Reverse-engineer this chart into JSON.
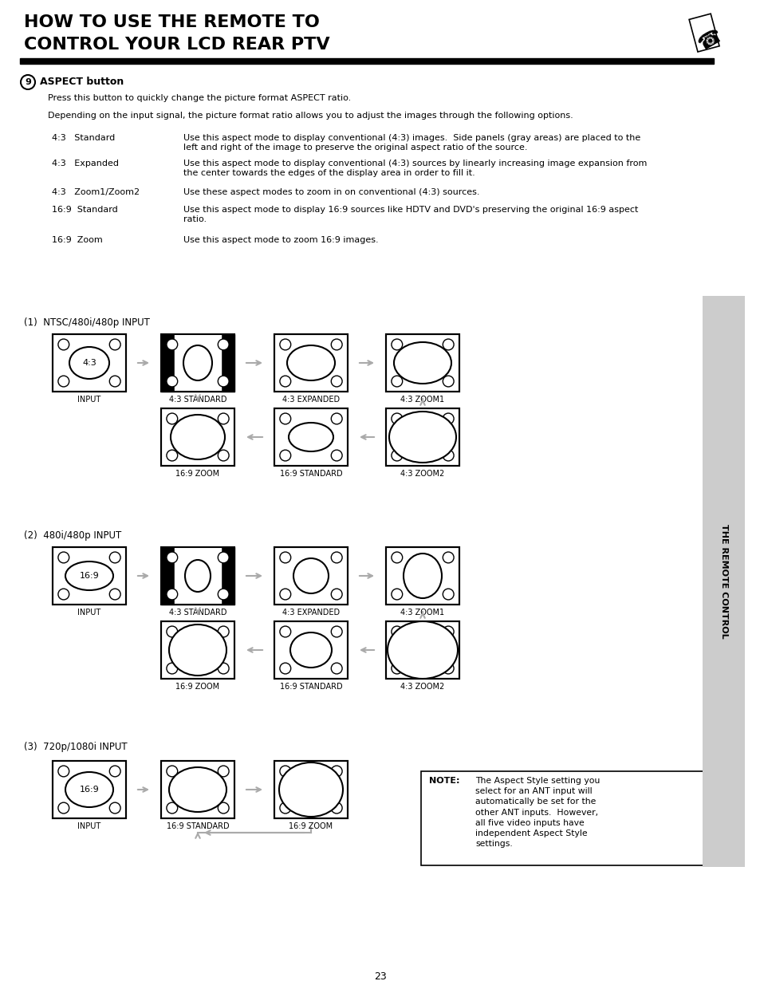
{
  "title_line1": "HOW TO USE THE REMOTE TO",
  "title_line2": "CONTROL YOUR LCD REAR PTV",
  "bg_color": "#ffffff",
  "sidebar_text": "THE REMOTE CONTROL",
  "page_number": "23",
  "aspect_button_label": "ASPECT button",
  "aspect_button_number": "9",
  "body_text1": "Press this button to quickly change the picture format ASPECT ratio.",
  "body_text2": "Depending on the input signal, the picture format ratio allows you to adjust the images through the following options.",
  "mode_labels": [
    "4:3   Standard",
    "4:3   Expanded",
    "4:3   Zoom1/Zoom2",
    "16:9  Standard",
    "16:9  Zoom"
  ],
  "mode_descs": [
    "Use this aspect mode to display conventional (4:3) images.  Side panels (gray areas) are placed to the\nleft and right of the image to preserve the original aspect ratio of the source.",
    "Use this aspect mode to display conventional (4:3) sources by linearly increasing image expansion from\nthe center towards the edges of the display area in order to fill it.",
    "Use these aspect modes to zoom in on conventional (4:3) sources.",
    "Use this aspect mode to display 16:9 sources like HDTV and DVD's preserving the original 16:9 aspect\nratio.",
    "Use this aspect mode to zoom 16:9 images."
  ],
  "section_labels": [
    "(1)  NTSC/480i/480p INPUT",
    "(2)  480i/480p INPUT",
    "(3)  720p/1080i INPUT"
  ],
  "note_label": "NOTE:",
  "note_body": "The Aspect Style setting you\nselect for an ANT input will\nautomatically be set for the\nother ANT inputs.  However,\nall five video inputs have\nindependent Aspect Style\nsettings.",
  "arrow_color": "#aaaaaa",
  "sidebar_bg": "#cccccc"
}
